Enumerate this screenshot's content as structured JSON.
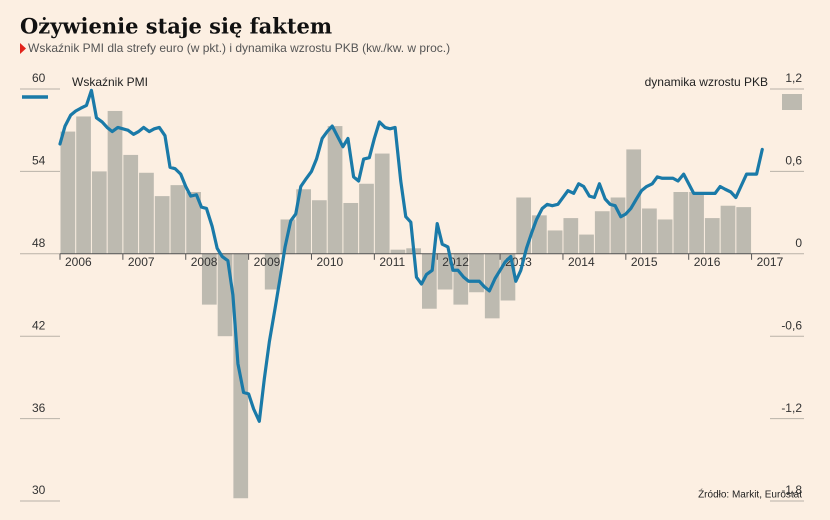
{
  "chart_data": {
    "type": "combo",
    "title": "Ożywienie staje się faktem",
    "subtitle": "Wskaźnik PMI dla strefy euro (w pkt.) i dynamika wzrostu PKB (kw./kw. w proc.)",
    "source": "Źródło: Markit, Eurostat",
    "xlim": [
      2006,
      2017.5
    ],
    "xticks": [
      2006,
      2007,
      2008,
      2009,
      2010,
      2011,
      2012,
      2013,
      2014,
      2015,
      2016,
      2017
    ],
    "ylim": [
      30,
      60
    ],
    "yticks": [
      30,
      36,
      42,
      48,
      54,
      60
    ],
    "y2lim": [
      -1.8,
      1.2
    ],
    "y2ticks": [
      {
        "value": -1.8,
        "label": "-1,8"
      },
      {
        "value": -1.2,
        "label": "-1,2"
      },
      {
        "value": -0.6,
        "label": "-0,6"
      },
      0,
      {
        "value": 0.6,
        "label": "0,6"
      },
      {
        "value": 1.2,
        "label": "1,2"
      }
    ],
    "series": [
      {
        "name": "dynamika wzrostu PKB",
        "type": "bar",
        "axis": "y2",
        "color": "#bdbab0",
        "x": [
          2006,
          2006.25,
          2006.5,
          2006.75,
          2007,
          2007.25,
          2007.5,
          2007.75,
          2008,
          2008.25,
          2008.5,
          2008.75,
          2009,
          2009.25,
          2009.5,
          2009.75,
          2010,
          2010.25,
          2010.5,
          2010.75,
          2011,
          2011.25,
          2011.5,
          2011.75,
          2012,
          2012.25,
          2012.5,
          2012.75,
          2013,
          2013.25,
          2013.5,
          2013.75,
          2014,
          2014.25,
          2014.5,
          2014.75,
          2015,
          2015.25,
          2015.5,
          2015.75,
          2016,
          2016.25,
          2016.5,
          2016.75
        ],
        "values": [
          0.89,
          1.0,
          0.6,
          1.04,
          0.72,
          0.59,
          0.42,
          0.5,
          0.45,
          -0.37,
          -0.6,
          -1.78,
          0,
          -0.26,
          0.25,
          0.47,
          0.39,
          0.93,
          0.37,
          0.51,
          0.73,
          0.03,
          0.04,
          -0.4,
          -0.26,
          -0.37,
          -0.28,
          -0.47,
          -0.34,
          0.41,
          0.28,
          0.17,
          0.26,
          0.14,
          0.31,
          0.41,
          0.76,
          0.33,
          0.25,
          0.45,
          0.45,
          0.26,
          0.35,
          0.34
        ]
      },
      {
        "name": "Wskaźnik PMI",
        "type": "line",
        "color": "#1a7aa8",
        "x": [
          2006,
          2006.08,
          2006.17,
          2006.25,
          2006.33,
          2006.42,
          2006.5,
          2006.58,
          2006.67,
          2006.75,
          2006.83,
          2006.92,
          2007,
          2007.08,
          2007.17,
          2007.25,
          2007.33,
          2007.42,
          2007.5,
          2007.58,
          2007.67,
          2007.75,
          2007.83,
          2007.92,
          2008,
          2008.08,
          2008.17,
          2008.25,
          2008.33,
          2008.42,
          2008.5,
          2008.58,
          2008.67,
          2008.75,
          2008.83,
          2008.92,
          2009,
          2009.08,
          2009.17,
          2009.25,
          2009.33,
          2009.42,
          2009.5,
          2009.58,
          2009.67,
          2009.75,
          2009.83,
          2009.92,
          2010,
          2010.08,
          2010.17,
          2010.25,
          2010.33,
          2010.42,
          2010.5,
          2010.58,
          2010.67,
          2010.75,
          2010.83,
          2010.92,
          2011,
          2011.08,
          2011.17,
          2011.25,
          2011.33,
          2011.42,
          2011.5,
          2011.58,
          2011.67,
          2011.75,
          2011.83,
          2011.92,
          2012,
          2012.08,
          2012.17,
          2012.25,
          2012.33,
          2012.42,
          2012.5,
          2012.58,
          2012.67,
          2012.75,
          2012.83,
          2012.92,
          2013,
          2013.08,
          2013.17,
          2013.25,
          2013.33,
          2013.42,
          2013.5,
          2013.58,
          2013.67,
          2013.75,
          2013.83,
          2013.92,
          2014,
          2014.08,
          2014.17,
          2014.25,
          2014.33,
          2014.42,
          2014.5,
          2014.58,
          2014.67,
          2014.75,
          2014.83,
          2014.92,
          2015,
          2015.08,
          2015.17,
          2015.25,
          2015.33,
          2015.42,
          2015.5,
          2015.58,
          2015.67,
          2015.75,
          2015.83,
          2015.92,
          2016,
          2016.08,
          2016.17,
          2016.25,
          2016.33,
          2016.42,
          2016.5,
          2016.58,
          2016.67,
          2016.75,
          2016.83,
          2016.92,
          2017,
          2017.08,
          2017.17
        ],
        "values": [
          56.0,
          57.3,
          58.1,
          58.4,
          58.6,
          58.8,
          59.9,
          57.9,
          57.6,
          57.2,
          56.9,
          57.2,
          57.1,
          57.0,
          56.7,
          56.9,
          57.2,
          56.9,
          57.1,
          57.2,
          56.6,
          54.3,
          54.2,
          53.8,
          52.9,
          52.2,
          52.3,
          51.4,
          51.3,
          50.0,
          48.4,
          47.8,
          47.5,
          45.0,
          40.0,
          37.9,
          37.8,
          36.7,
          35.8,
          38.9,
          41.6,
          44.0,
          46.2,
          48.5,
          50.4,
          50.9,
          52.9,
          53.5,
          54.0,
          54.9,
          56.4,
          56.9,
          57.3,
          56.5,
          55.8,
          56.4,
          53.6,
          53.3,
          54.9,
          55.0,
          56.4,
          57.6,
          57.2,
          57.1,
          57.2,
          53.3,
          50.7,
          50.3,
          46.3,
          45.8,
          46.5,
          46.8,
          50.2,
          48.7,
          48.5,
          46.8,
          46.8,
          46.3,
          46.0,
          46.0,
          46.0,
          45.6,
          45.3,
          46.2,
          46.8,
          47.4,
          47.8,
          46.0,
          46.8,
          48.4,
          49.5,
          50.5,
          51.3,
          51.6,
          51.5,
          51.6,
          52.1,
          52.6,
          52.4,
          53.1,
          52.9,
          52.2,
          52.1,
          53.1,
          52.0,
          51.6,
          51.5,
          50.7,
          50.9,
          51.3,
          52.0,
          52.6,
          52.9,
          53.1,
          53.6,
          53.5,
          53.5,
          53.5,
          53.3,
          53.8,
          53.1,
          52.4,
          52.4,
          52.4,
          52.4,
          52.4,
          52.9,
          52.7,
          52.5,
          52.1,
          52.9,
          53.8,
          53.8,
          53.8,
          55.6
        ]
      }
    ]
  }
}
